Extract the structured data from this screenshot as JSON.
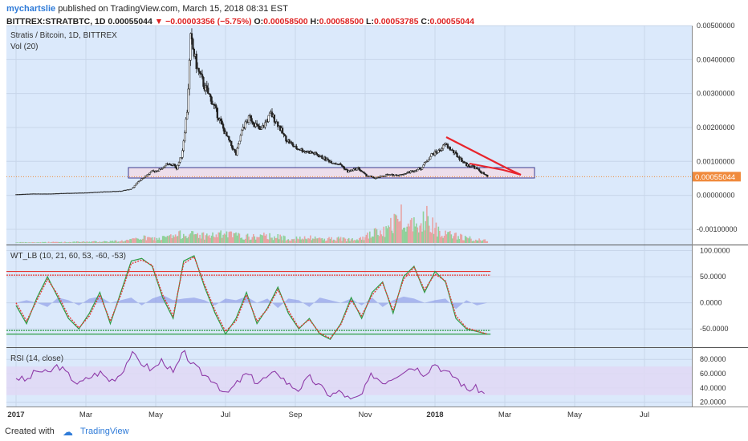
{
  "header": {
    "author": "mychartslie",
    "published": "published on TradingView.com, March 15, 2018 08:31 EST",
    "symbol": "BITTREX:STRATBTC, 1D",
    "price": "0.00055044",
    "change": "▼ −0.00003356 (−5.75%)",
    "o_label": "O:",
    "o": "0.00058500",
    "h_label": "H:",
    "h": "0.00058500",
    "l_label": "L:",
    "l": "0.00053785",
    "c_label": "C:",
    "c": "0.00055044"
  },
  "footer": {
    "created_with": "Created with",
    "brand": "TradingView"
  },
  "colors": {
    "panel_bg": "#dbe9fb",
    "band_bg": "#e1d8f5",
    "candle": "#222222",
    "trend_red": "#e8242c",
    "wt_red": "#e53935",
    "wt_green": "#2e9d46",
    "rsi_line": "#8e3aa8",
    "price_tag": "#f08a3c",
    "support_box": "#f3d9e5"
  },
  "chart_data": [
    {
      "type": "candlestick",
      "title": "Stratis / Bitcoin, 1D, BITTREX",
      "indicator": "Vol (20)",
      "x_ticks": [
        "2017",
        "Mar",
        "May",
        "Jul",
        "Sep",
        "Nov",
        "2018",
        "Mar",
        "May",
        "Jul"
      ],
      "y_ticks": [
        "0.00500000",
        "0.00400000",
        "0.00300000",
        "0.00200000",
        "0.00100000",
        "0.00000000",
        "-0.00100000"
      ],
      "ylim": [
        -0.00145,
        0.005
      ],
      "last_price_label": "0.00055044",
      "x_months": [
        0,
        0.5,
        1,
        1.5,
        2,
        2.5,
        3,
        3.3,
        3.6,
        3.9,
        4.1,
        4.3,
        4.5,
        4.6,
        4.75,
        4.9,
        5.0,
        5.2,
        5.4,
        5.6,
        5.8,
        6.0,
        6.3,
        6.5,
        6.7,
        7.0,
        7.3,
        7.5,
        7.7,
        8.0,
        8.3,
        8.5,
        8.8,
        9.0,
        9.3,
        9.5,
        9.8,
        10.0,
        10.3,
        10.6,
        11.0,
        11.3,
        11.6,
        11.9,
        12.1,
        12.3,
        12.6,
        12.9,
        13.1,
        13.3,
        13.5
      ],
      "close": [
        2e-05,
        4e-05,
        4e-05,
        6e-05,
        7e-05,
        0.0001,
        0.00012,
        0.00018,
        0.0005,
        0.0007,
        0.00075,
        0.0009,
        0.0009,
        0.0008,
        0.0012,
        0.0025,
        0.0046,
        0.0037,
        0.0032,
        0.0028,
        0.0023,
        0.0018,
        0.0012,
        0.002,
        0.0023,
        0.0019,
        0.0024,
        0.0021,
        0.0017,
        0.0014,
        0.0013,
        0.00125,
        0.0011,
        0.001,
        0.0009,
        0.0007,
        0.0008,
        0.0006,
        0.0005,
        0.0006,
        0.0006,
        0.0007,
        0.0008,
        0.0012,
        0.0013,
        0.0015,
        0.0012,
        0.0009,
        0.00085,
        0.0007,
        0.00055
      ],
      "volume": [
        0.02,
        0.02,
        0.03,
        0.03,
        0.04,
        0.05,
        0.07,
        0.1,
        0.18,
        0.15,
        0.14,
        0.2,
        0.22,
        0.25,
        0.3,
        0.35,
        0.28,
        0.3,
        0.25,
        0.25,
        0.28,
        0.3,
        0.25,
        0.22,
        0.2,
        0.22,
        0.25,
        0.2,
        0.18,
        0.15,
        0.15,
        0.18,
        0.14,
        0.15,
        0.14,
        0.12,
        0.2,
        0.22,
        0.35,
        0.4,
        1.0,
        0.6,
        0.9,
        0.8,
        0.45,
        0.3,
        0.25,
        0.18,
        0.12,
        0.1,
        0.08
      ]
    },
    {
      "type": "line",
      "title": "WT_LB (10, 21, 60, 53, -60, -53)",
      "y_ticks": [
        "100.0000",
        "50.0000",
        "0.0000",
        "-50.0000"
      ],
      "ylim": [
        -85,
        110
      ],
      "levels": [
        60,
        53,
        -53,
        -60
      ],
      "x_months": [
        0,
        0.3,
        0.6,
        0.9,
        1.2,
        1.5,
        1.8,
        2.1,
        2.4,
        2.7,
        3.0,
        3.3,
        3.6,
        3.9,
        4.2,
        4.5,
        4.8,
        5.1,
        5.4,
        5.7,
        6.0,
        6.3,
        6.6,
        6.9,
        7.2,
        7.5,
        7.8,
        8.1,
        8.4,
        8.7,
        9.0,
        9.3,
        9.6,
        9.9,
        10.2,
        10.5,
        10.8,
        11.1,
        11.4,
        11.7,
        12.0,
        12.3,
        12.6,
        12.9,
        13.2,
        13.5
      ],
      "wt1": [
        -5,
        -40,
        10,
        50,
        10,
        -30,
        -50,
        -20,
        20,
        -40,
        20,
        80,
        85,
        70,
        10,
        -30,
        80,
        90,
        30,
        -20,
        -60,
        -30,
        20,
        -40,
        -10,
        30,
        -20,
        -50,
        -30,
        -60,
        -70,
        -40,
        10,
        -30,
        20,
        40,
        -20,
        50,
        70,
        20,
        60,
        40,
        -30,
        -50,
        -55,
        -60
      ],
      "wt2": [
        0,
        -35,
        5,
        45,
        15,
        -25,
        -48,
        -25,
        15,
        -35,
        15,
        75,
        82,
        72,
        15,
        -25,
        75,
        88,
        35,
        -15,
        -55,
        -35,
        15,
        -35,
        -12,
        25,
        -15,
        -48,
        -32,
        -58,
        -68,
        -42,
        5,
        -25,
        15,
        38,
        -15,
        45,
        68,
        25,
        55,
        42,
        -25,
        -48,
        -54,
        -60
      ],
      "momentum": [
        0,
        5,
        0,
        -8,
        10,
        5,
        -5,
        8,
        12,
        0,
        5,
        10,
        -5,
        8,
        15,
        5,
        8,
        10,
        5,
        -5,
        8,
        5,
        12,
        0,
        8,
        -10,
        8,
        5,
        -8,
        10,
        5,
        0,
        8,
        -5,
        10,
        -8,
        5,
        12,
        8,
        0,
        5,
        8,
        -12,
        5,
        -5,
        0
      ]
    },
    {
      "type": "line",
      "title": "RSI (14, close)",
      "y_ticks": [
        "80.0000",
        "60.0000",
        "40.0000",
        "20.0000"
      ],
      "ylim": [
        14,
        96
      ],
      "band": [
        30,
        70
      ],
      "x_months": [
        0,
        0.3,
        0.6,
        0.9,
        1.2,
        1.5,
        1.8,
        2.1,
        2.4,
        2.7,
        3.0,
        3.3,
        3.6,
        3.9,
        4.2,
        4.5,
        4.8,
        5.1,
        5.4,
        5.7,
        6.0,
        6.3,
        6.6,
        6.9,
        7.2,
        7.5,
        7.8,
        8.1,
        8.4,
        8.7,
        9.0,
        9.3,
        9.6,
        9.9,
        10.2,
        10.5,
        10.8,
        11.1,
        11.4,
        11.7,
        12.0,
        12.3,
        12.6,
        12.9,
        13.2,
        13.5
      ],
      "values": [
        55,
        50,
        65,
        60,
        72,
        58,
        45,
        55,
        62,
        50,
        60,
        88,
        75,
        65,
        80,
        60,
        90,
        70,
        58,
        50,
        30,
        45,
        60,
        48,
        55,
        62,
        45,
        38,
        55,
        42,
        30,
        35,
        22,
        30,
        60,
        48,
        55,
        65,
        70,
        60,
        75,
        62,
        55,
        38,
        40,
        28
      ]
    }
  ]
}
